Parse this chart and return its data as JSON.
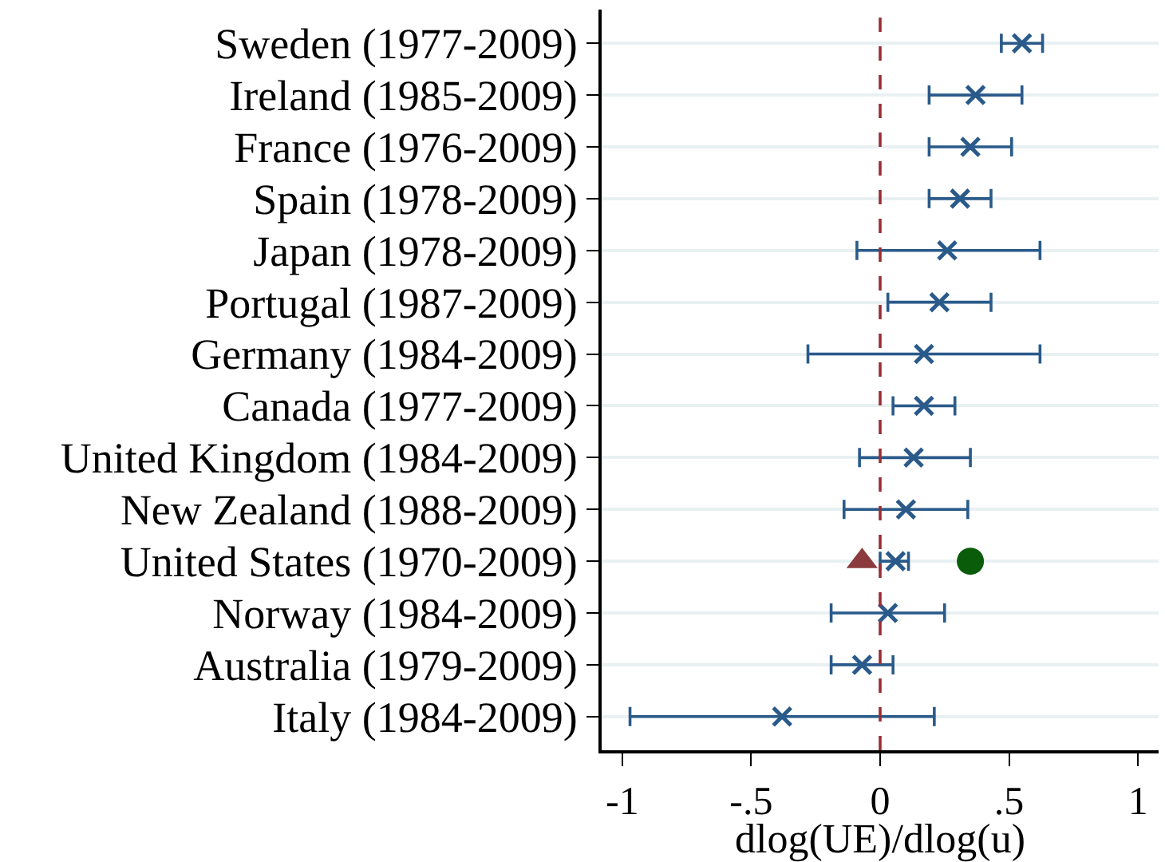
{
  "chart_data": {
    "type": "scatter",
    "orientation": "horizontal",
    "xlabel": "dlog(UE)/dlog(u)",
    "categories": [
      "Sweden (1977-2009)",
      "Ireland (1985-2009)",
      "France (1976-2009)",
      "Spain (1978-2009)",
      "Japan (1978-2009)",
      "Portugal (1987-2009)",
      "Germany (1984-2009)",
      "Canada (1977-2009)",
      "United Kingdom (1984-2009)",
      "New Zealand (1988-2009)",
      "United States (1970-2009)",
      "Norway (1984-2009)",
      "Australia (1979-2009)",
      "Italy (1984-2009)"
    ],
    "series": [
      {
        "color": "#2a5a8a",
        "marker": "cross",
        "values": [
          0.55,
          0.37,
          0.35,
          0.31,
          0.26,
          0.23,
          0.17,
          0.17,
          0.13,
          0.1,
          0.06,
          0.03,
          -0.07,
          -0.38
        ],
        "errors": [
          [
            0.47,
            0.63
          ],
          [
            0.19,
            0.55
          ],
          [
            0.19,
            0.51
          ],
          [
            0.19,
            0.43
          ],
          [
            -0.09,
            0.62
          ],
          [
            0.03,
            0.43
          ],
          [
            -0.28,
            0.62
          ],
          [
            0.05,
            0.29
          ],
          [
            -0.08,
            0.35
          ],
          [
            -0.14,
            0.34
          ],
          [
            0.0,
            0.11
          ],
          [
            -0.19,
            0.25
          ],
          [
            -0.19,
            0.05
          ],
          [
            -0.97,
            0.21
          ]
        ]
      },
      {
        "color": "#8b3a3e",
        "marker": "triangle",
        "values": [
          null,
          null,
          null,
          null,
          null,
          null,
          null,
          null,
          null,
          null,
          -0.07,
          null,
          null,
          null
        ]
      },
      {
        "color": "#0a5c0a",
        "marker": "circle",
        "values": [
          null,
          null,
          null,
          null,
          null,
          null,
          null,
          null,
          null,
          null,
          0.35,
          null,
          null,
          null
        ]
      }
    ],
    "xlim": [
      -1.08,
      1.08
    ],
    "xticks": [
      -1,
      {
        "value": -0.5,
        "label": "-.5"
      },
      0,
      {
        "value": 0.5,
        "label": ".5"
      },
      1
    ],
    "ref_lines": [
      {
        "axis": "x",
        "value": 0,
        "color": "#9b2d35",
        "line_style": "dashed"
      }
    ],
    "grid": "y"
  }
}
